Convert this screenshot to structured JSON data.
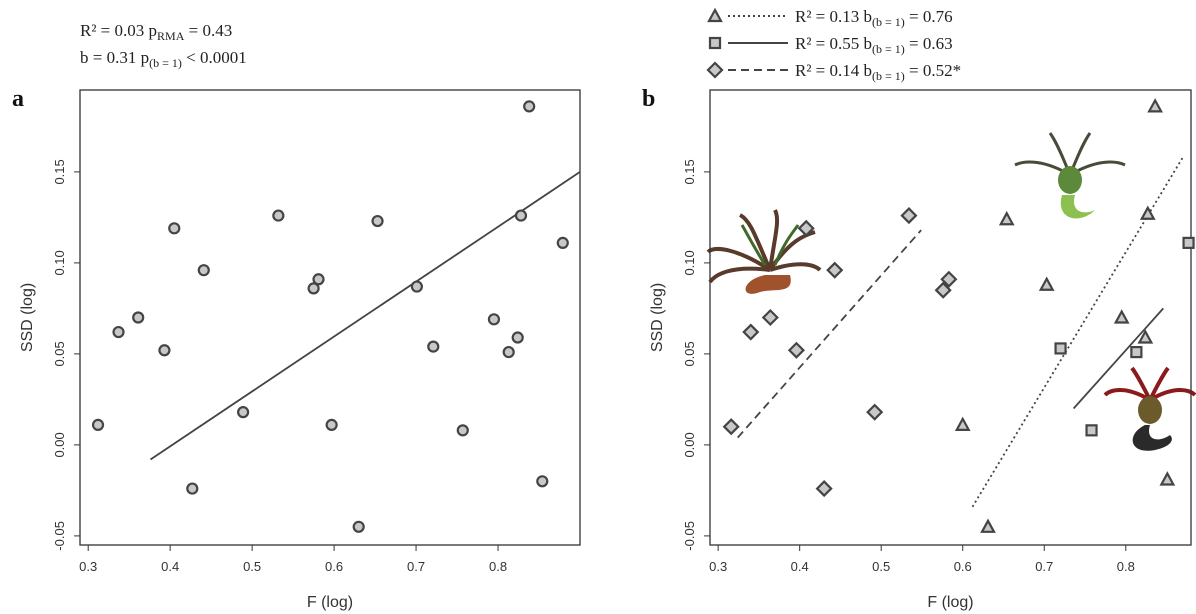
{
  "chart_data": [
    {
      "type": "scatter",
      "panel": "a",
      "x_label": "F (log)",
      "y_label": "SSD (log)",
      "annotations": [
        [
          "R² = 0.03 p",
          "RMA",
          " = 0.43"
        ],
        [
          "b = 0.31   p",
          "(b = 1)",
          " < 0.0001"
        ]
      ],
      "xlim": [
        0.29,
        0.9
      ],
      "ylim": [
        -0.055,
        0.195
      ],
      "xticks": [
        0.3,
        0.4,
        0.5,
        0.6,
        0.7,
        0.8
      ],
      "yticks": [
        -0.05,
        {
          "value": 0,
          "label": "0.00"
        },
        {
          "value": 0.05,
          "label": "0.05"
        },
        {
          "value": 0.1,
          "label": "0.10"
        },
        {
          "value": 0.15,
          "label": "0.15"
        }
      ],
      "series": [
        {
          "marker": "circle",
          "color": "#444444",
          "dash": "solid",
          "x": [
            0.312,
            0.337,
            0.361,
            0.393,
            0.405,
            0.427,
            0.441,
            0.489,
            0.532,
            0.575,
            0.581,
            0.597,
            0.63,
            0.653,
            0.701,
            0.721,
            0.757,
            0.795,
            0.813,
            0.824,
            0.828,
            0.838,
            0.854,
            0.879
          ],
          "values": [
            0.011,
            0.062,
            0.07,
            0.052,
            0.119,
            -0.024,
            0.096,
            0.018,
            0.126,
            0.086,
            0.091,
            0.011,
            -0.045,
            0.123,
            0.087,
            0.054,
            0.008,
            0.069,
            0.051,
            0.059,
            0.126,
            0.186,
            -0.02,
            0.111
          ],
          "fit": {
            "x": [
              0.376,
              0.9
            ],
            "values": [
              -0.008,
              0.15
            ]
          }
        }
      ]
    },
    {
      "type": "scatter",
      "panel": "b",
      "x_label": "F (log)",
      "y_label": "SSD (log)",
      "xlim": [
        0.29,
        0.88
      ],
      "ylim": [
        -0.055,
        0.195
      ],
      "xticks": [
        0.3,
        0.4,
        0.5,
        0.6,
        0.7,
        0.8
      ],
      "yticks": [
        -0.05,
        {
          "value": 0,
          "label": "0.00"
        },
        {
          "value": 0.05,
          "label": "0.05"
        },
        {
          "value": 0.1,
          "label": "0.10"
        },
        {
          "value": 0.15,
          "label": "0.15"
        }
      ],
      "series": [
        {
          "name": [
            "R² = 0.13 b",
            "(b = 1)",
            " = 0.76"
          ],
          "marker": "triangle",
          "color": "#444444",
          "dash": "dotted",
          "x": [
            0.6,
            0.631,
            0.654,
            0.703,
            0.795,
            0.824,
            0.827,
            0.836,
            0.851
          ],
          "values": [
            0.011,
            -0.045,
            0.124,
            0.088,
            0.07,
            0.059,
            0.127,
            0.186,
            -0.019
          ],
          "fit": {
            "x": [
              0.612,
              0.87
            ],
            "values": [
              -0.034,
              0.158
            ]
          }
        },
        {
          "name": [
            "R² = 0.55 b",
            "(b = 1)",
            " = 0.63"
          ],
          "marker": "square",
          "color": "#444444",
          "dash": "solid",
          "x": [
            0.72,
            0.758,
            0.813,
            0.877
          ],
          "values": [
            0.053,
            0.008,
            0.051,
            0.111
          ],
          "fit": {
            "x": [
              0.736,
              0.846
            ],
            "values": [
              0.02,
              0.075
            ]
          }
        },
        {
          "name": [
            "R² = 0.14 b",
            "(b = 1)",
            " = 0.52*"
          ],
          "marker": "diamond",
          "color": "#444444",
          "dash": "dashed",
          "x": [
            0.316,
            0.34,
            0.364,
            0.396,
            0.408,
            0.43,
            0.443,
            0.492,
            0.534,
            0.576,
            0.583
          ],
          "values": [
            0.01,
            0.062,
            0.07,
            0.052,
            0.119,
            -0.024,
            0.096,
            0.018,
            0.126,
            0.085,
            0.091
          ],
          "fit": {
            "x": [
              0.324,
              0.549
            ],
            "values": [
              0.004,
              0.118
            ]
          }
        }
      ]
    }
  ]
}
